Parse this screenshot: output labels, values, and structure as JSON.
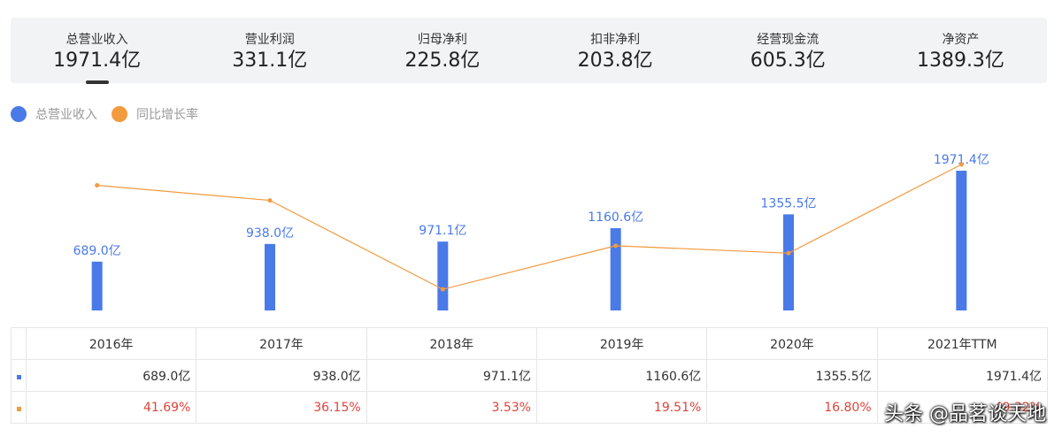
{
  "tabs": [
    {
      "label": "总营业收入",
      "value": "1971.4亿",
      "active": true
    },
    {
      "label": "营业利润",
      "value": "331.1亿",
      "active": false
    },
    {
      "label": "归母净利",
      "value": "225.8亿",
      "active": false
    },
    {
      "label": "扣非净利",
      "value": "203.8亿",
      "active": false
    },
    {
      "label": "经营现金流",
      "value": "605.3亿",
      "active": false
    },
    {
      "label": "净资产",
      "value": "1389.3亿",
      "active": false
    }
  ],
  "legend": [
    {
      "label": "总营业收入",
      "color": "#4a7ae8"
    },
    {
      "label": "同比增长率",
      "color": "#f19a3e"
    }
  ],
  "chart_data": {
    "type": "bar",
    "categories": [
      "2016年",
      "2017年",
      "2018年",
      "2019年",
      "2020年",
      "2021年TTM"
    ],
    "series": [
      {
        "name": "总营业收入",
        "type": "bar",
        "values": [
          689.0,
          938.0,
          971.1,
          1160.6,
          1355.5,
          1971.4
        ],
        "labels": [
          "689.0亿",
          "938.0亿",
          "971.1亿",
          "1160.6亿",
          "1355.5亿",
          "1971.4亿"
        ],
        "color": "#4a7ae8"
      },
      {
        "name": "同比增长率",
        "type": "line",
        "values": [
          41.69,
          36.15,
          3.53,
          19.51,
          16.8,
          49.32
        ],
        "labels": [
          "41.69%",
          "36.15%",
          "3.53%",
          "19.51%",
          "16.80%",
          "49.32%"
        ],
        "color": "#f19a3e"
      }
    ],
    "grid": false,
    "legend_position": "top-left"
  },
  "table": {
    "headers": [
      "2016年",
      "2017年",
      "2018年",
      "2019年",
      "2020年",
      "2021年TTM"
    ],
    "revenue_row": [
      "689.0亿",
      "938.0亿",
      "971.1亿",
      "1160.6亿",
      "1355.5亿",
      "1971.4亿"
    ],
    "growth_row": [
      "41.69%",
      "36.15%",
      "3.53%",
      "19.51%",
      "16.80%",
      "49.32%"
    ]
  },
  "watermark": "头条 @品茗谈天地"
}
